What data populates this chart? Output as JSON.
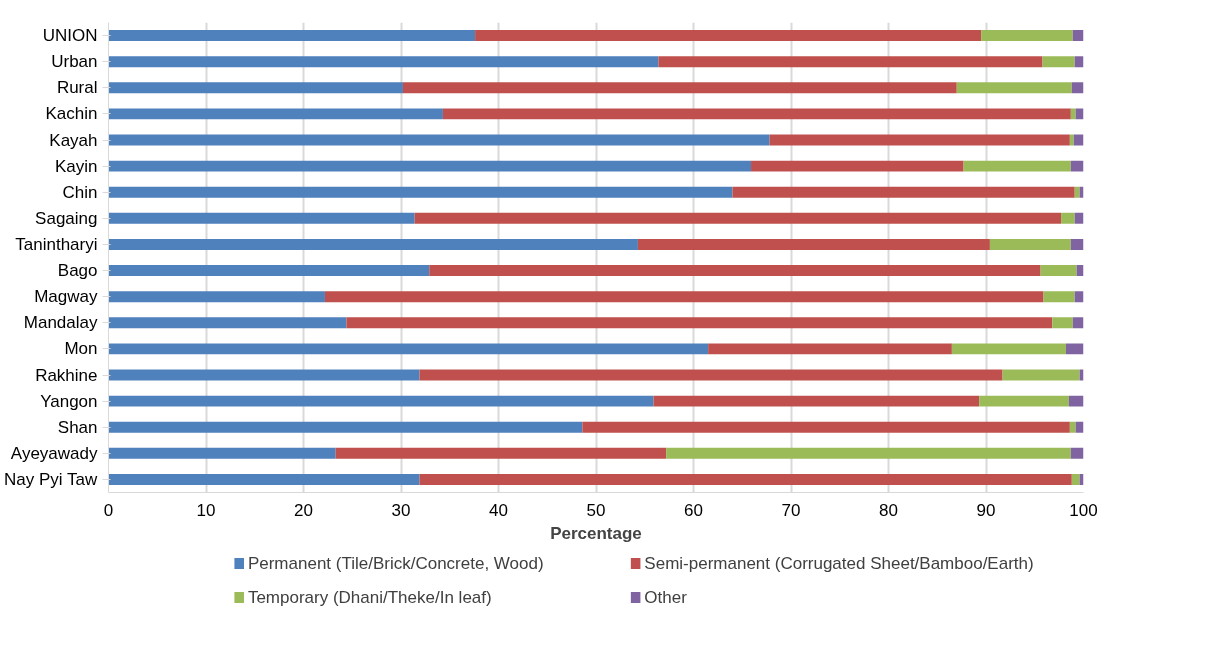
{
  "chart_data": {
    "type": "bar",
    "orientation": "horizontal",
    "stacked": true,
    "xlabel": "Percentage",
    "categories": [
      "UNION",
      "Urban",
      "Rural",
      "Kachin",
      "Kayah",
      "Kayin",
      "Chin",
      "Sagaing",
      "Tanintharyi",
      "Bago",
      "Magway",
      "Mandalay",
      "Mon",
      "Rakhine",
      "Yangon",
      "Shan",
      "Ayeyawady",
      "Nay Pyi Taw"
    ],
    "series": [
      {
        "name": "Permanent (Tile/Brick/Concrete, Wood)",
        "color": "#4f81bd",
        "values": [
          37.6,
          56.4,
          30.2,
          34.3,
          67.8,
          65.9,
          64.0,
          31.4,
          54.3,
          32.9,
          22.2,
          24.4,
          61.5,
          31.9,
          55.9,
          48.6,
          23.3,
          31.9
        ]
      },
      {
        "name": "Semi-permanent (Corrugated Sheet/Bamboo/Earth)",
        "color": "#c0504d",
        "values": [
          51.9,
          39.4,
          56.8,
          64.4,
          30.8,
          21.8,
          35.1,
          66.3,
          36.1,
          62.7,
          73.7,
          72.4,
          25.0,
          59.8,
          33.4,
          50.0,
          33.9,
          66.9
        ]
      },
      {
        "name": "Temporary (Dhani/Theke/In leaf)",
        "color": "#9bbb59",
        "values": [
          9.4,
          3.3,
          11.8,
          0.5,
          0.4,
          11.0,
          0.5,
          1.4,
          8.3,
          3.7,
          3.2,
          2.1,
          11.7,
          7.9,
          9.2,
          0.6,
          41.5,
          0.8
        ]
      },
      {
        "name": "Other",
        "color": "#8064a2",
        "values": [
          1.1,
          0.9,
          1.2,
          0.8,
          1.0,
          1.3,
          0.4,
          0.9,
          1.3,
          0.7,
          0.9,
          1.1,
          1.8,
          0.4,
          1.5,
          0.8,
          1.3,
          0.4
        ]
      }
    ],
    "xlim": [
      0,
      100
    ],
    "xticks": [
      0,
      10,
      20,
      30,
      40,
      50,
      60,
      70,
      80,
      90,
      100
    ],
    "grid": "x",
    "legend": "bottom"
  }
}
